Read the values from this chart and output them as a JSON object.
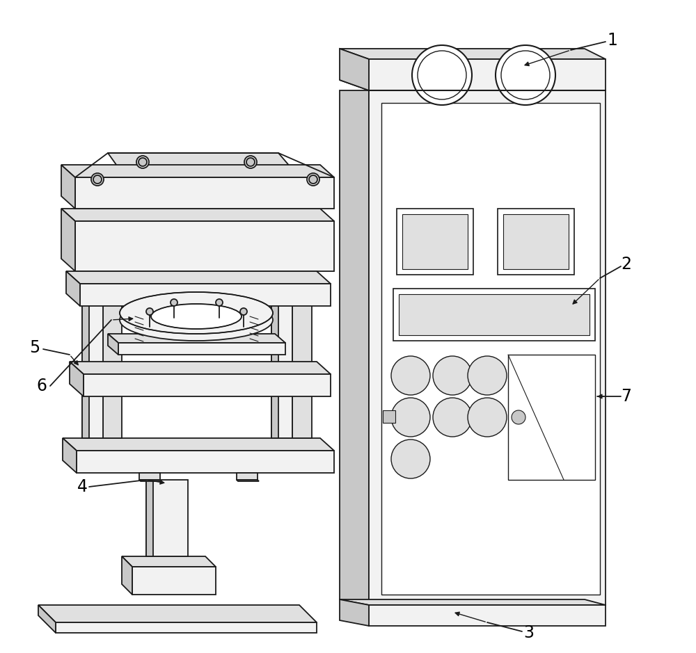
{
  "bg_color": "#ffffff",
  "line_color": "#1a1a1a",
  "fill_white": "#ffffff",
  "fill_light": "#f2f2f2",
  "fill_mid": "#e0e0e0",
  "fill_dark": "#c8c8c8",
  "fill_vdark": "#b0b0b0"
}
